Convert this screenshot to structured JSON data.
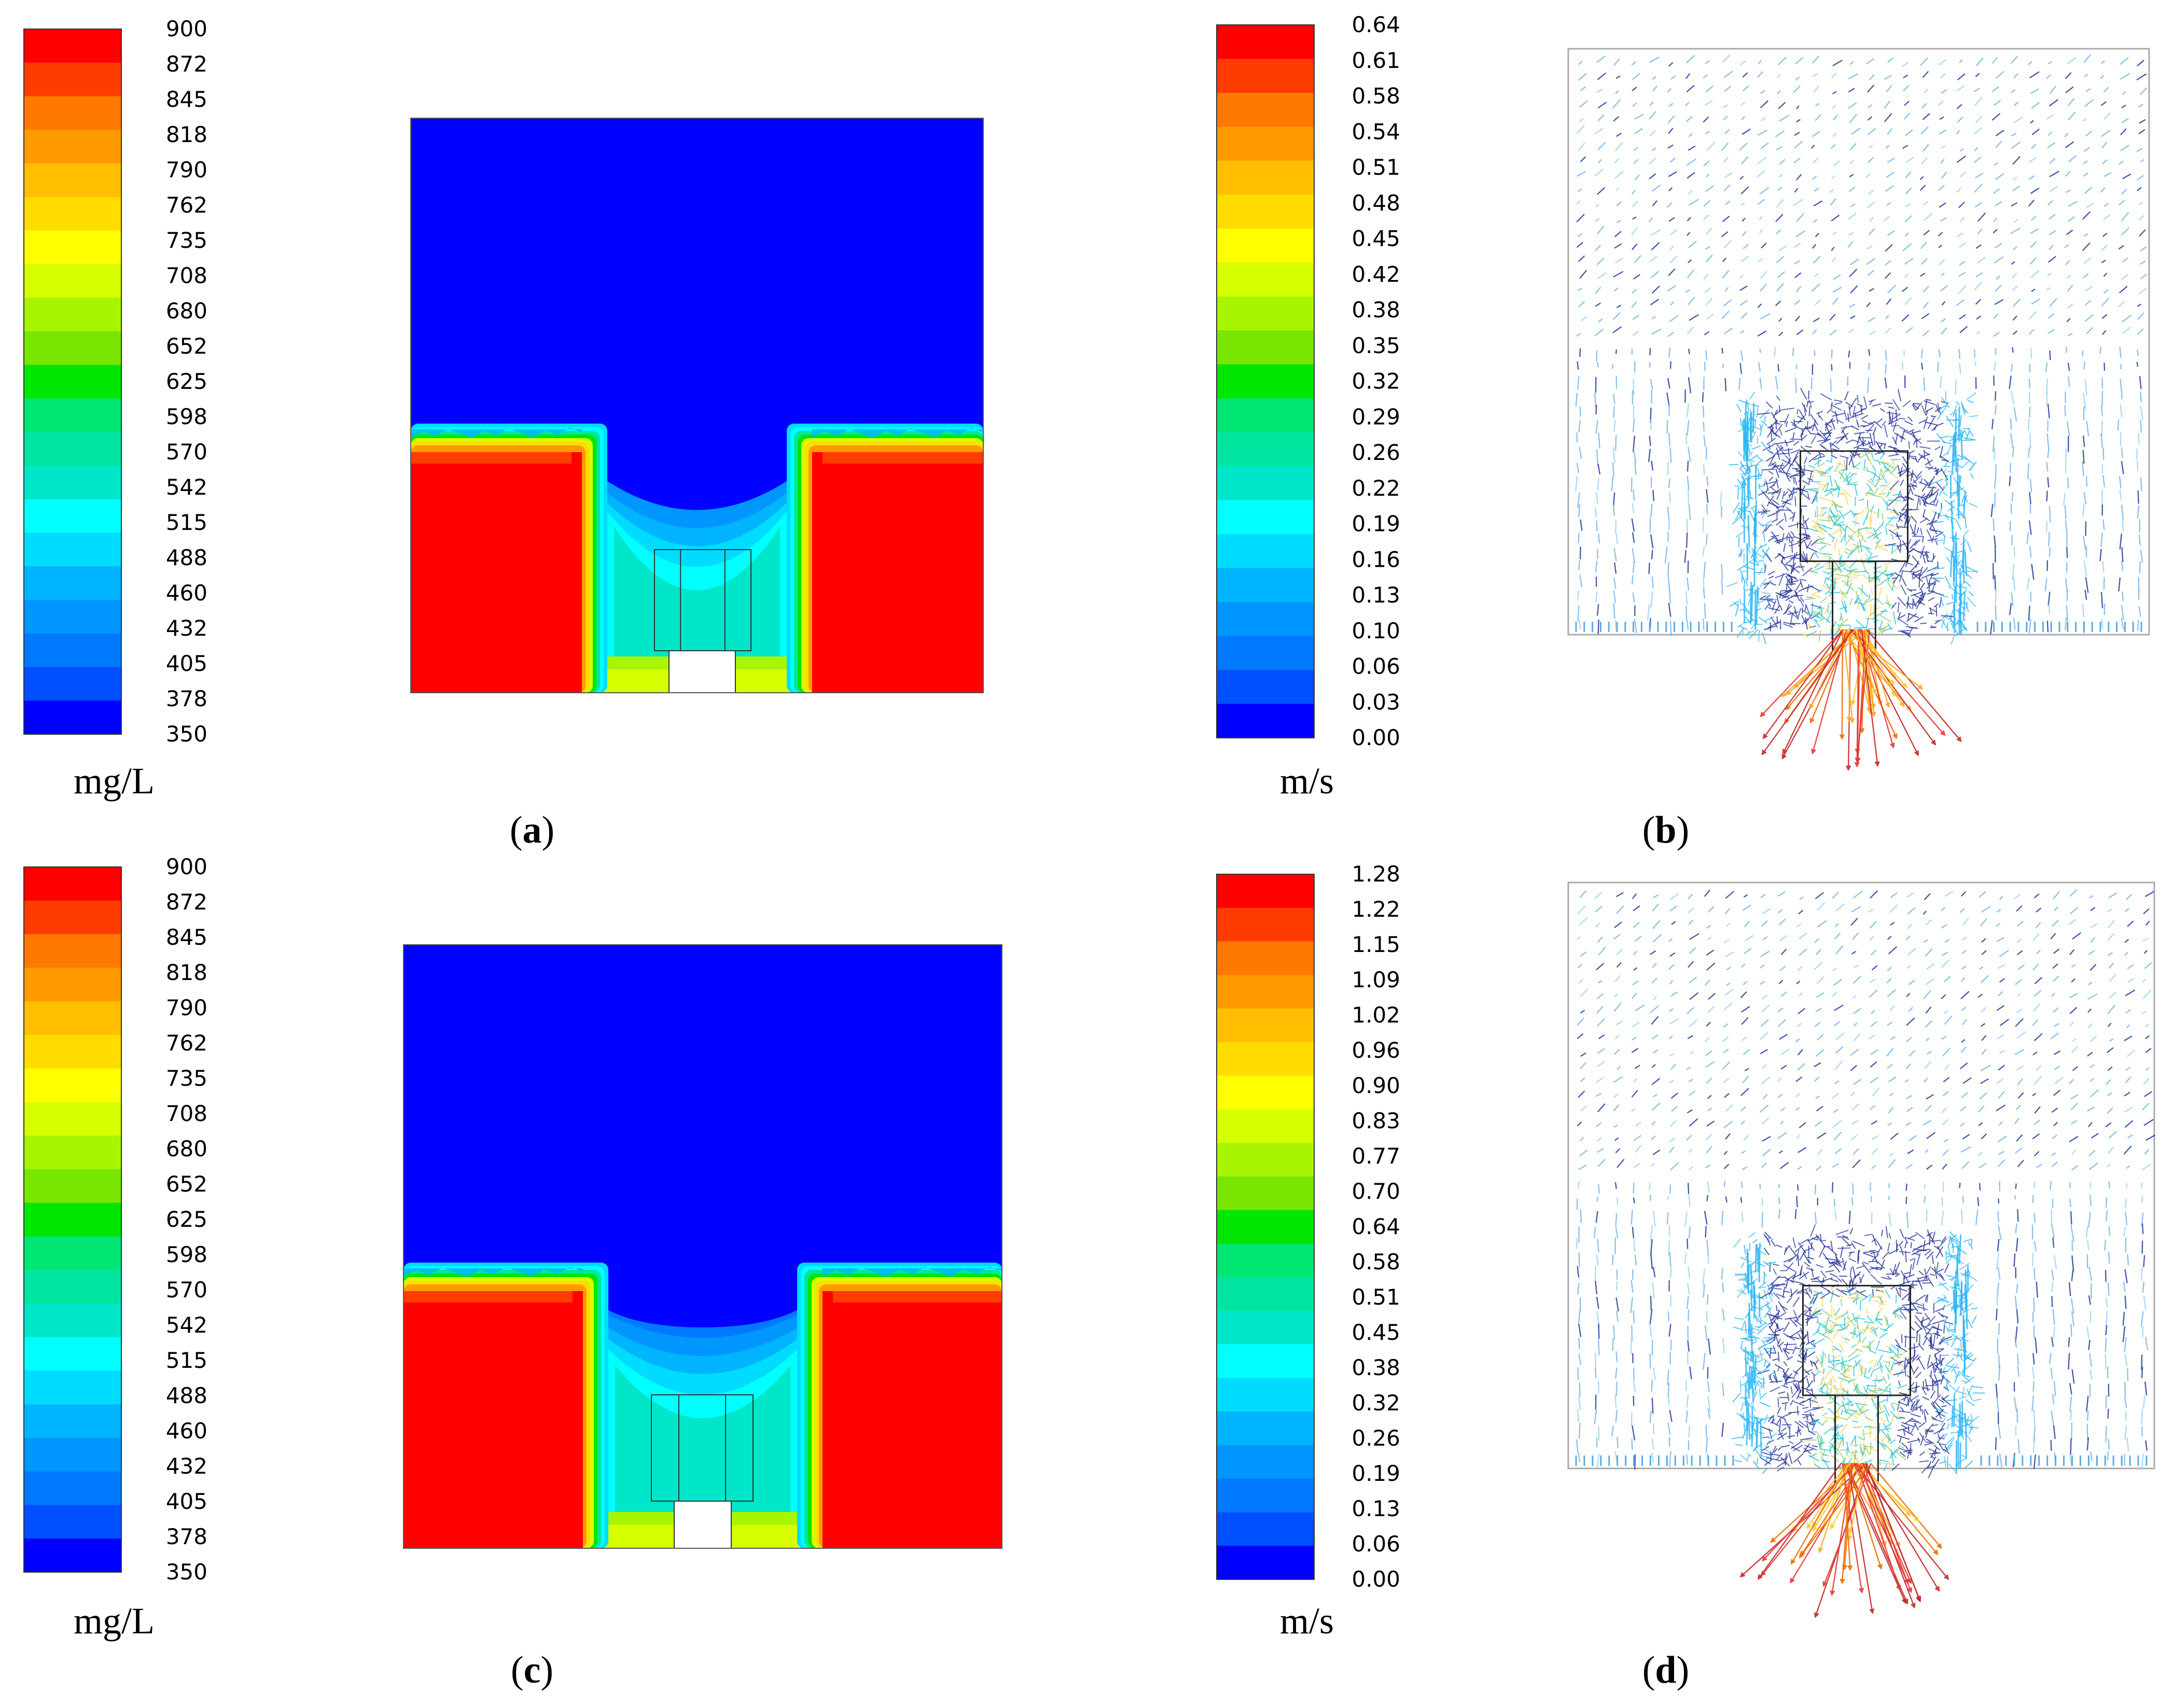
{
  "figure": {
    "panels": [
      {
        "id": "a",
        "label": "a",
        "kind": "concentration-contour"
      },
      {
        "id": "b",
        "label": "b",
        "kind": "velocity-vectors"
      },
      {
        "id": "c",
        "label": "c",
        "kind": "concentration-contour"
      },
      {
        "id": "d",
        "label": "d",
        "kind": "velocity-vectors"
      }
    ],
    "colorbars": [
      {
        "id": "conc-top",
        "unit": "mg/L",
        "ticks": [
          "900",
          "872",
          "845",
          "818",
          "790",
          "762",
          "735",
          "708",
          "680",
          "652",
          "625",
          "598",
          "570",
          "542",
          "515",
          "488",
          "460",
          "432",
          "405",
          "378",
          "350"
        ]
      },
      {
        "id": "vel-top",
        "unit": "m/s",
        "ticks": [
          "0.64",
          "0.61",
          "0.58",
          "0.54",
          "0.51",
          "0.48",
          "0.45",
          "0.42",
          "0.38",
          "0.35",
          "0.32",
          "0.29",
          "0.26",
          "0.22",
          "0.19",
          "0.16",
          "0.13",
          "0.10",
          "0.06",
          "0.03",
          "0.00"
        ]
      },
      {
        "id": "conc-bottom",
        "unit": "mg/L",
        "ticks": [
          "900",
          "872",
          "845",
          "818",
          "790",
          "762",
          "735",
          "708",
          "680",
          "652",
          "625",
          "598",
          "570",
          "542",
          "515",
          "488",
          "460",
          "432",
          "405",
          "378",
          "350"
        ]
      },
      {
        "id": "vel-bottom",
        "unit": "m/s",
        "ticks": [
          "1.28",
          "1.22",
          "1.15",
          "1.09",
          "1.02",
          "0.96",
          "0.90",
          "0.83",
          "0.77",
          "0.70",
          "0.64",
          "0.58",
          "0.51",
          "0.45",
          "0.38",
          "0.32",
          "0.26",
          "0.19",
          "0.13",
          "0.06",
          "0.00"
        ]
      }
    ],
    "colors": [
      "#ff0000",
      "#ff3c00",
      "#ff7800",
      "#ff9b00",
      "#ffbe00",
      "#ffdc00",
      "#ffff00",
      "#d6ff00",
      "#a8f500",
      "#78e600",
      "#00e600",
      "#00e673",
      "#00e6a0",
      "#00e6c8",
      "#00ffff",
      "#00dcff",
      "#00b4ff",
      "#0096ff",
      "#0078ff",
      "#0050ff",
      "#0000ff"
    ]
  }
}
